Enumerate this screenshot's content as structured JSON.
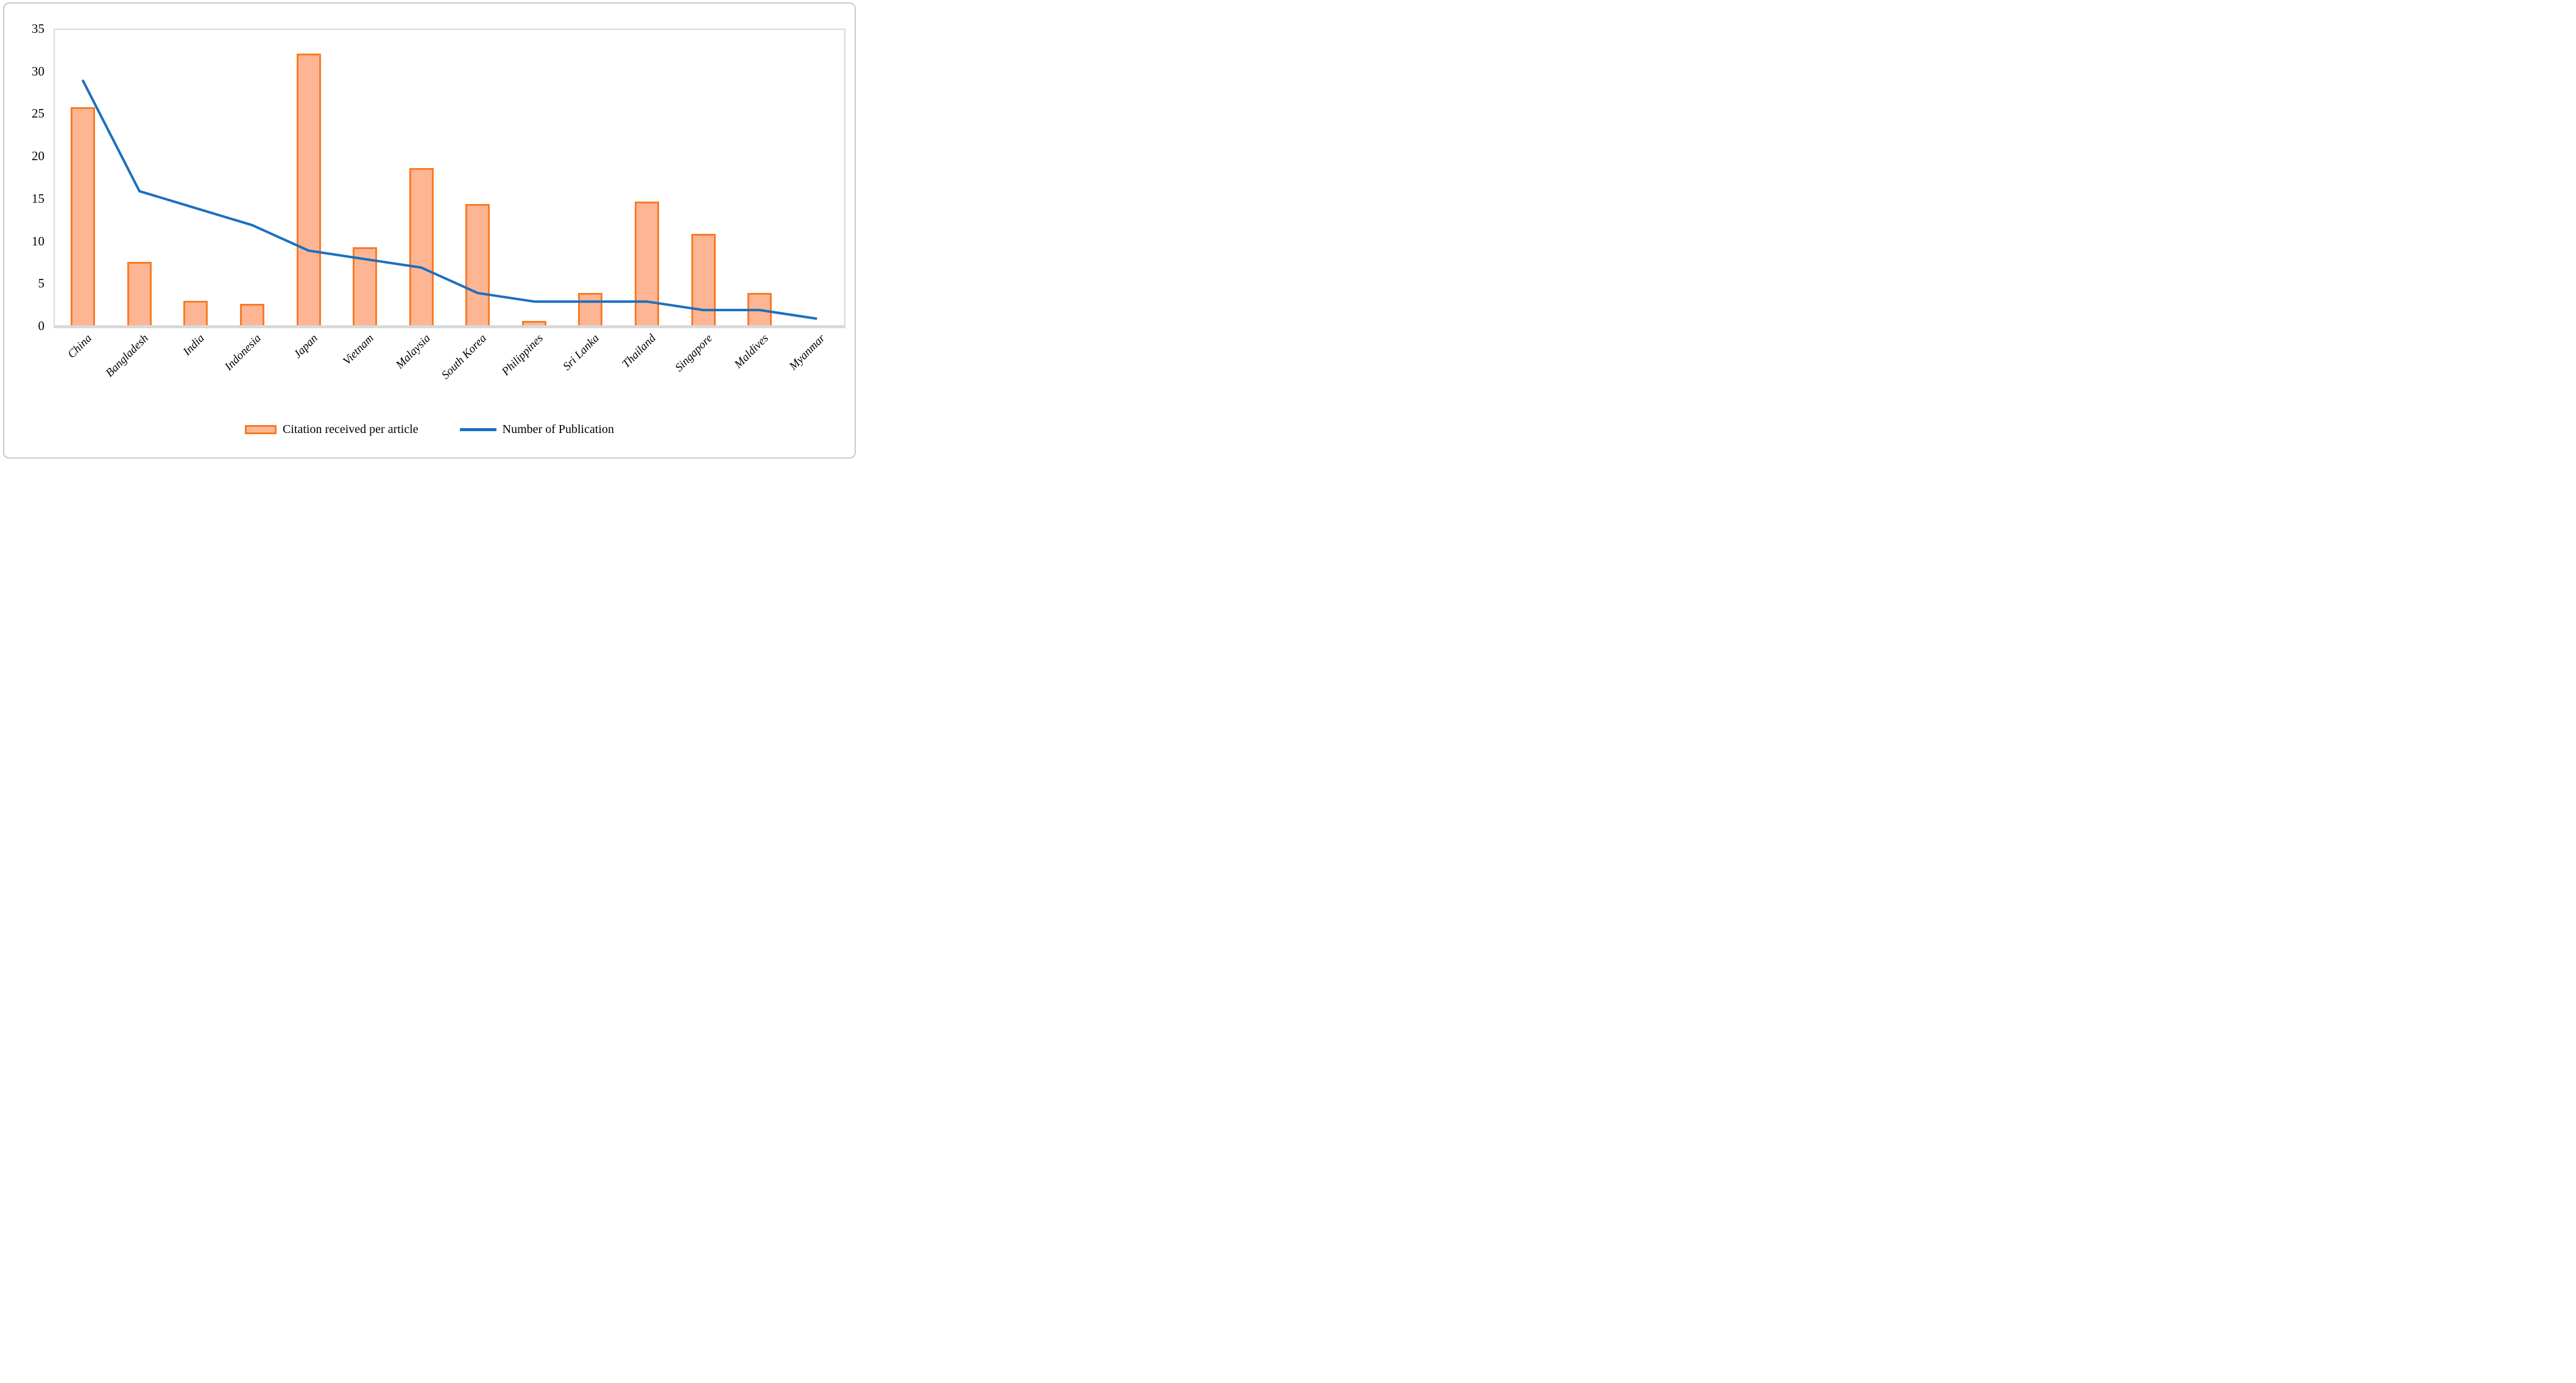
{
  "chart_data": {
    "type": "bar+line combo",
    "categories": [
      "China",
      "Bangladesh",
      "India",
      "Indonesia",
      "Japan",
      "Vietnam",
      "Malaysia",
      "South Korea",
      "Philippines",
      "Sri Lanka",
      "Thailand",
      "Singapore",
      "Maldives",
      "Myanmar"
    ],
    "series": [
      {
        "name": "Citation received per article",
        "type": "bar",
        "values": [
          25.9,
          7.7,
          3.1,
          2.7,
          32.2,
          9.4,
          18.7,
          14.5,
          0.7,
          4.0,
          14.8,
          11.0,
          4.0,
          0
        ]
      },
      {
        "name": "Number of Publication",
        "type": "line",
        "values": [
          29,
          16,
          14,
          12,
          9,
          8,
          7,
          4,
          3,
          3,
          3,
          2,
          2,
          1
        ]
      }
    ],
    "title": "",
    "xlabel": "",
    "ylabel": "",
    "ylim": [
      0,
      35
    ],
    "yticks": [
      0,
      5,
      10,
      15,
      20,
      25,
      30,
      35
    ],
    "grid": false,
    "legend_position": "bottom",
    "colors": {
      "bar_fill": "#feb593",
      "bar_border": "#f97b26",
      "line": "#1b6fc0",
      "axis": "#d9d9d9",
      "text": "#000000"
    }
  }
}
